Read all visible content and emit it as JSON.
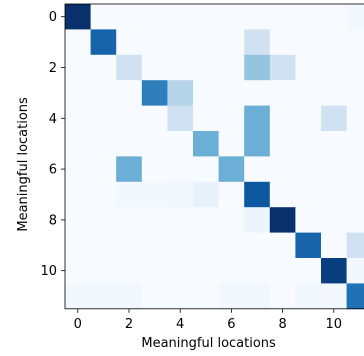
{
  "chart_data": {
    "type": "heatmap",
    "title": "",
    "xlabel": "Meaningful locations",
    "ylabel": "Meaningful locations",
    "x_ticks": [
      "0",
      "2",
      "4",
      "6",
      "8",
      "10"
    ],
    "y_ticks": [
      "0",
      "2",
      "4",
      "6",
      "8",
      "10"
    ],
    "rows": 12,
    "cols": 12,
    "colormap": "Blues",
    "vmin": 0,
    "vmax": 1,
    "grid": false,
    "values": [
      [
        1.0,
        0.0,
        0.0,
        0.0,
        0.0,
        0.0,
        0.0,
        0.0,
        0.0,
        0.0,
        0.0,
        0.02
      ],
      [
        0.0,
        0.8,
        0.0,
        0.0,
        0.0,
        0.0,
        0.0,
        0.2,
        0.0,
        0.0,
        0.0,
        0.0
      ],
      [
        0.0,
        0.0,
        0.2,
        0.0,
        0.0,
        0.0,
        0.0,
        0.4,
        0.2,
        0.0,
        0.0,
        0.0
      ],
      [
        0.0,
        0.0,
        0.0,
        0.7,
        0.3,
        0.0,
        0.0,
        0.0,
        0.0,
        0.0,
        0.0,
        0.0
      ],
      [
        0.0,
        0.0,
        0.0,
        0.0,
        0.2,
        0.0,
        0.0,
        0.5,
        0.0,
        0.0,
        0.2,
        0.0
      ],
      [
        0.0,
        0.0,
        0.0,
        0.0,
        0.0,
        0.5,
        0.0,
        0.5,
        0.0,
        0.0,
        0.0,
        0.0
      ],
      [
        0.0,
        0.0,
        0.5,
        0.0,
        0.0,
        0.0,
        0.5,
        0.0,
        0.0,
        0.0,
        0.0,
        0.0
      ],
      [
        0.0,
        0.0,
        0.02,
        0.02,
        0.03,
        0.08,
        0.0,
        0.85,
        0.0,
        0.0,
        0.0,
        0.0
      ],
      [
        0.0,
        0.0,
        0.0,
        0.0,
        0.0,
        0.0,
        0.0,
        0.05,
        1.0,
        0.0,
        0.0,
        0.0
      ],
      [
        0.0,
        0.0,
        0.0,
        0.0,
        0.0,
        0.0,
        0.0,
        0.0,
        0.0,
        0.8,
        0.0,
        0.2
      ],
      [
        0.0,
        0.0,
        0.0,
        0.0,
        0.0,
        0.0,
        0.0,
        0.0,
        0.0,
        0.0,
        0.95,
        0.02
      ],
      [
        0.03,
        0.03,
        0.03,
        0.0,
        0.0,
        0.0,
        0.03,
        0.03,
        0.0,
        0.03,
        0.03,
        0.75
      ]
    ]
  }
}
